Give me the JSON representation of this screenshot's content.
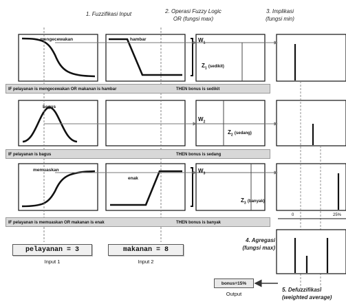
{
  "headers": {
    "fuzzifikasi": "1. Fuzzifikasi Input",
    "operasi_line1": "2. Operasi Fuzzy Logic",
    "operasi_line2": "OR (fungsi max)",
    "implikasi_line1": "3. Implikasi",
    "implikasi_line2": "(fungsi min)"
  },
  "rows": [
    {
      "pelayanan_mf": "mengecewakan",
      "makanan_mf": "hambar",
      "weight": "W",
      "weight_sub": "1",
      "output_z": "Z",
      "output_z_sub": "1",
      "output_label": "(sedikit)",
      "rule_if": "IF pelayanan is mengecewakan OR makanan is hambar",
      "rule_then": "THEN bonus is sedikit"
    },
    {
      "pelayanan_mf": "bagus",
      "makanan_mf": "",
      "weight": "W",
      "weight_sub": "2",
      "output_z": "Z",
      "output_z_sub": "2",
      "output_label": "(sedang)",
      "rule_if": "IF pelayanan is bagus",
      "rule_then": "THEN bonus is sedang"
    },
    {
      "pelayanan_mf": "memuaskan",
      "makanan_mf": "enak",
      "weight": "W",
      "weight_sub": "3",
      "output_z": "Z",
      "output_z_sub": "3",
      "output_label": "(banyak)",
      "rule_if": "IF pelayanan is memuaskan OR makanan is enak",
      "rule_then": "THEN bonus is banyak"
    }
  ],
  "axis_ticks": {
    "zero": "0",
    "mid": "25%"
  },
  "inputs": {
    "pelayanan": "pelayanan = 3",
    "pelayanan_caption": "Input 1",
    "makanan": "makanan = 8",
    "makanan_caption": "Input 2"
  },
  "agregasi": {
    "line1": "4. Agregasi",
    "line2": "(fungsi max)"
  },
  "defuzzifikasi": {
    "line1": "5. Defuzzifikasi",
    "line2": "(weighted average)"
  },
  "output": {
    "value": "bonus=15%",
    "caption": "Output"
  },
  "colors": {
    "rule_bar": "#d8d8d8",
    "line": "#111111",
    "dashed": "#777777"
  }
}
